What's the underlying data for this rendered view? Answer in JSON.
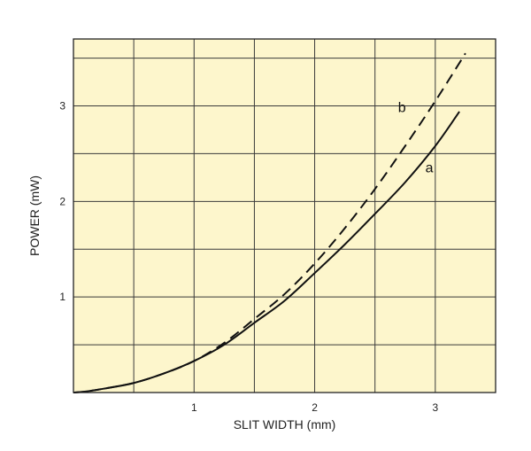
{
  "chart_data": {
    "type": "line",
    "title": "",
    "xlabel": "SLIT WIDTH (mm)",
    "ylabel": "POWER (mW)",
    "xlim": [
      0,
      3.5
    ],
    "ylim": [
      0,
      3.7
    ],
    "x_ticks": [
      1,
      2,
      3
    ],
    "y_ticks": [
      1,
      2,
      3
    ],
    "x_grid": [
      0.5,
      1,
      1.5,
      2,
      2.5,
      3
    ],
    "y_grid": [
      0.5,
      1,
      1.5,
      2,
      2.5,
      3,
      3.5
    ],
    "grid": true,
    "background": "#fdf6cc",
    "grid_color": "#3a3a3a",
    "series": [
      {
        "name": "a",
        "style": "solid",
        "color": "#111111",
        "x": [
          0,
          0.1,
          0.25,
          0.5,
          0.75,
          1,
          1.25,
          1.5,
          1.75,
          2,
          2.25,
          2.5,
          2.75,
          3,
          3.2
        ],
        "y": [
          0,
          0.01,
          0.04,
          0.1,
          0.2,
          0.33,
          0.5,
          0.73,
          0.96,
          1.25,
          1.55,
          1.87,
          2.2,
          2.58,
          2.94
        ]
      },
      {
        "name": "b",
        "style": "dashed",
        "color": "#111111",
        "x": [
          0,
          0.1,
          0.25,
          0.5,
          0.75,
          1,
          1.25,
          1.5,
          1.75,
          2,
          2.25,
          2.5,
          2.75,
          3,
          3.25
        ],
        "y": [
          0,
          0.01,
          0.04,
          0.1,
          0.2,
          0.33,
          0.52,
          0.77,
          1.03,
          1.35,
          1.72,
          2.13,
          2.58,
          3.05,
          3.55
        ]
      }
    ]
  }
}
